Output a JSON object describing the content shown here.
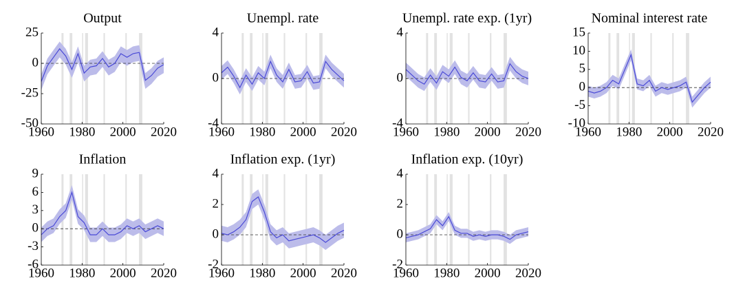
{
  "chart_data": [
    {
      "type": "line",
      "title": "Output",
      "x": [
        1960,
        1963,
        1966,
        1969,
        1972,
        1975,
        1978,
        1981,
        1984,
        1987,
        1990,
        1993,
        1996,
        1999,
        2002,
        2005,
        2008,
        2011,
        2014,
        2017,
        2020
      ],
      "values": [
        -15,
        -2,
        5,
        12,
        6,
        -5,
        8,
        -8,
        -3,
        -2,
        4,
        -3,
        0,
        8,
        5,
        8,
        9,
        -14,
        -10,
        -4,
        -1
      ],
      "band": {
        "lower": [
          -22,
          -9,
          -2,
          5,
          -1,
          -12,
          1,
          -15,
          -10,
          -9,
          -3,
          -10,
          -7,
          1,
          -2,
          1,
          2,
          -21,
          -17,
          -11,
          -8
        ],
        "upper": [
          -9,
          4,
          11,
          18,
          12,
          1,
          14,
          -2,
          3,
          4,
          10,
          3,
          6,
          14,
          11,
          14,
          15,
          -8,
          -4,
          2,
          5
        ]
      },
      "xlim": [
        1960,
        2020
      ],
      "xticks": [
        1960,
        1980,
        2000,
        2020
      ],
      "ylim": [
        -50,
        25
      ],
      "yticks": [
        -50,
        -25,
        0,
        25
      ],
      "reference_line": 0,
      "shading": [
        [
          1969.9,
          1970.9
        ],
        [
          1973.9,
          1975.2
        ],
        [
          1980,
          1980.5
        ],
        [
          1981.5,
          1982.9
        ],
        [
          1990.5,
          1991.2
        ],
        [
          2001.2,
          2001.9
        ],
        [
          2007.9,
          2009.5
        ]
      ],
      "color": "#4a4ad6",
      "band_color": "#bcbcea",
      "shading_color": "#e2e2e2"
    },
    {
      "type": "line",
      "title": "Unempl. rate",
      "x": [
        1960,
        1963,
        1966,
        1969,
        1972,
        1975,
        1978,
        1981,
        1984,
        1987,
        1990,
        1993,
        1996,
        1999,
        2002,
        2005,
        2008,
        2011,
        2014,
        2017,
        2020
      ],
      "values": [
        0.5,
        1.0,
        0.2,
        -0.8,
        0.3,
        -0.5,
        0.5,
        0.0,
        1.5,
        0.3,
        -0.3,
        0.8,
        -0.3,
        -0.2,
        0.6,
        -0.4,
        -0.3,
        1.5,
        0.8,
        0.3,
        -0.2
      ],
      "band": {
        "lower": [
          -0.1,
          0.4,
          -0.4,
          -1.4,
          -0.3,
          -1.1,
          -0.1,
          -0.6,
          0.9,
          -0.3,
          -0.9,
          0.2,
          -0.9,
          -0.8,
          0,
          -1,
          -0.9,
          0.9,
          0.2,
          -0.3,
          -0.8
        ],
        "upper": [
          1.1,
          1.6,
          0.8,
          -0.2,
          0.9,
          0.1,
          1.1,
          0.6,
          2.1,
          0.9,
          0.3,
          1.4,
          0.3,
          0.4,
          1.2,
          0.2,
          0.3,
          2.1,
          1.4,
          0.9,
          0.4
        ]
      },
      "xlim": [
        1960,
        2020
      ],
      "xticks": [
        1960,
        1980,
        2000,
        2020
      ],
      "ylim": [
        -4,
        4
      ],
      "yticks": [
        -4,
        0,
        4
      ],
      "reference_line": 0,
      "shading": [
        [
          1969.9,
          1970.9
        ],
        [
          1973.9,
          1975.2
        ],
        [
          1980,
          1980.5
        ],
        [
          1981.5,
          1982.9
        ],
        [
          1990.5,
          1991.2
        ],
        [
          2001.2,
          2001.9
        ],
        [
          2007.9,
          2009.5
        ]
      ],
      "color": "#4a4ad6",
      "band_color": "#bcbcea",
      "shading_color": "#e2e2e2"
    },
    {
      "type": "line",
      "title": "Unempl. rate exp. (1yr)",
      "x": [
        1960,
        1963,
        1966,
        1969,
        1972,
        1975,
        1978,
        1981,
        1984,
        1987,
        1990,
        1993,
        1996,
        1999,
        2002,
        2005,
        2008,
        2011,
        2014,
        2017,
        2020
      ],
      "values": [
        0.8,
        0.3,
        -0.2,
        -0.5,
        0.3,
        -0.4,
        0.6,
        0.2,
        1.0,
        0.1,
        -0.2,
        0.5,
        -0.2,
        -0.3,
        0.4,
        -0.3,
        -0.2,
        1.3,
        0.6,
        0.2,
        0.0
      ],
      "band": {
        "lower": [
          0.2,
          -0.3,
          -0.8,
          -1.1,
          -0.3,
          -1,
          0,
          -0.4,
          0.4,
          -0.5,
          -0.8,
          -0.1,
          -0.8,
          -0.9,
          -0.2,
          -0.9,
          -0.8,
          0.7,
          0,
          -0.4,
          -0.6
        ],
        "upper": [
          1.4,
          0.9,
          0.4,
          0.1,
          0.9,
          0.2,
          1.2,
          0.8,
          1.6,
          0.7,
          0.4,
          1.1,
          0.4,
          0.3,
          1,
          0.3,
          0.4,
          1.9,
          1.2,
          0.8,
          0.6
        ]
      },
      "xlim": [
        1960,
        2020
      ],
      "xticks": [
        1960,
        1980,
        2000,
        2020
      ],
      "ylim": [
        -4,
        4
      ],
      "yticks": [
        -4,
        0,
        4
      ],
      "reference_line": 0,
      "shading": [
        [
          1969.9,
          1970.9
        ],
        [
          1973.9,
          1975.2
        ],
        [
          1980,
          1980.5
        ],
        [
          1981.5,
          1982.9
        ],
        [
          1990.5,
          1991.2
        ],
        [
          2001.2,
          2001.9
        ],
        [
          2007.9,
          2009.5
        ]
      ],
      "color": "#4a4ad6",
      "band_color": "#bcbcea",
      "shading_color": "#e2e2e2"
    },
    {
      "type": "line",
      "title": "Nominal interest rate",
      "x": [
        1960,
        1963,
        1966,
        1969,
        1972,
        1975,
        1978,
        1981,
        1984,
        1987,
        1990,
        1993,
        1996,
        1999,
        2002,
        2005,
        2008,
        2011,
        2014,
        2017,
        2020
      ],
      "values": [
        -1,
        -1.5,
        -1,
        0,
        2,
        1,
        5,
        9,
        1,
        0.5,
        2,
        -1,
        0,
        -0.5,
        0,
        0.5,
        1.5,
        -4,
        -2,
        0,
        1.5
      ],
      "band": {
        "lower": [
          -2.5,
          -3,
          -2.5,
          -1.5,
          0.5,
          -0.5,
          3.5,
          7.5,
          -0.5,
          -1,
          0.5,
          -2.5,
          -1.5,
          -2,
          -1.5,
          -1,
          0,
          -5.5,
          -3.5,
          -1.5,
          0
        ],
        "upper": [
          0.5,
          0,
          0.5,
          1.5,
          3.5,
          2.5,
          6.5,
          10.5,
          2.5,
          2,
          3.5,
          0.5,
          1.5,
          1,
          1.5,
          2,
          3,
          -2.5,
          -0.5,
          1.5,
          3
        ]
      },
      "xlim": [
        1960,
        2020
      ],
      "xticks": [
        1960,
        1980,
        2000,
        2020
      ],
      "ylim": [
        -10,
        15
      ],
      "yticks": [
        -10,
        -5,
        0,
        5,
        10,
        15
      ],
      "reference_line": 0,
      "shading": [
        [
          1969.9,
          1970.9
        ],
        [
          1973.9,
          1975.2
        ],
        [
          1980,
          1980.5
        ],
        [
          1981.5,
          1982.9
        ],
        [
          1990.5,
          1991.2
        ],
        [
          2001.2,
          2001.9
        ],
        [
          2007.9,
          2009.5
        ]
      ],
      "color": "#4a4ad6",
      "band_color": "#bcbcea",
      "shading_color": "#e2e2e2"
    },
    {
      "type": "line",
      "title": "Inflation",
      "x": [
        1960,
        1963,
        1966,
        1969,
        1972,
        1975,
        1978,
        1981,
        1984,
        1987,
        1990,
        1993,
        1996,
        1999,
        2002,
        2005,
        2008,
        2011,
        2014,
        2017,
        2020
      ],
      "values": [
        -1,
        0,
        0.5,
        2,
        3,
        6,
        2,
        1,
        -1,
        -1,
        0,
        -1,
        -1,
        -0.5,
        0.5,
        0,
        0.5,
        -0.5,
        0,
        0.5,
        0
      ],
      "band": {
        "lower": [
          -2.2,
          -1.2,
          -0.7,
          0.8,
          1.8,
          4.8,
          0.8,
          -0.2,
          -2.2,
          -2.2,
          -1.2,
          -2.2,
          -2.2,
          -1.7,
          -0.7,
          -1.2,
          -0.7,
          -1.7,
          -1.2,
          -0.7,
          -1.2
        ],
        "upper": [
          0.2,
          1.2,
          1.7,
          3.2,
          4.2,
          7.2,
          3.2,
          2.2,
          0.2,
          0.2,
          1.2,
          0.2,
          0.2,
          0.7,
          1.7,
          1.2,
          1.7,
          0.7,
          1.2,
          1.7,
          1.2
        ]
      },
      "xlim": [
        1960,
        2020
      ],
      "xticks": [
        1960,
        1980,
        2000,
        2020
      ],
      "ylim": [
        -6,
        9
      ],
      "yticks": [
        -6,
        -3,
        0,
        3,
        6,
        9
      ],
      "reference_line": 0,
      "shading": [
        [
          1969.9,
          1970.9
        ],
        [
          1973.9,
          1975.2
        ],
        [
          1980,
          1980.5
        ],
        [
          1981.5,
          1982.9
        ],
        [
          1990.5,
          1991.2
        ],
        [
          2001.2,
          2001.9
        ],
        [
          2007.9,
          2009.5
        ]
      ],
      "color": "#4a4ad6",
      "band_color": "#bcbcea",
      "shading_color": "#e2e2e2"
    },
    {
      "type": "line",
      "title": "Inflation exp. (1yr)",
      "x": [
        1960,
        1963,
        1966,
        1969,
        1972,
        1975,
        1978,
        1981,
        1984,
        1987,
        1990,
        1993,
        1996,
        1999,
        2002,
        2005,
        2008,
        2011,
        2014,
        2017,
        2020
      ],
      "values": [
        0.1,
        0,
        0.2,
        0.5,
        1.0,
        2.2,
        2.5,
        1.5,
        0.2,
        -0.2,
        0,
        -0.4,
        -0.3,
        -0.2,
        -0.1,
        0,
        -0.2,
        -0.5,
        -0.2,
        0.1,
        0.3
      ],
      "band": {
        "lower": [
          -0.4,
          -0.5,
          -0.3,
          0,
          0.5,
          1.7,
          2,
          1,
          -0.3,
          -0.7,
          -0.5,
          -0.9,
          -0.8,
          -0.7,
          -0.6,
          -0.5,
          -0.7,
          -1,
          -0.7,
          -0.4,
          -0.2
        ],
        "upper": [
          0.6,
          0.5,
          0.7,
          1,
          1.5,
          2.7,
          3,
          2,
          0.7,
          0.3,
          0.5,
          0.1,
          0.2,
          0.3,
          0.4,
          0.5,
          0.3,
          0,
          0.3,
          0.6,
          0.8
        ]
      },
      "xlim": [
        1960,
        2020
      ],
      "xticks": [
        1960,
        1980,
        2000,
        2020
      ],
      "ylim": [
        -2,
        4
      ],
      "yticks": [
        -2,
        0,
        2,
        4
      ],
      "reference_line": 0,
      "shading": [
        [
          1969.9,
          1970.9
        ],
        [
          1973.9,
          1975.2
        ],
        [
          1980,
          1980.5
        ],
        [
          1981.5,
          1982.9
        ],
        [
          1990.5,
          1991.2
        ],
        [
          2001.2,
          2001.9
        ],
        [
          2007.9,
          2009.5
        ]
      ],
      "color": "#4a4ad6",
      "band_color": "#bcbcea",
      "shading_color": "#e2e2e2"
    },
    {
      "type": "line",
      "title": "Inflation exp. (10yr)",
      "x": [
        1960,
        1963,
        1966,
        1969,
        1972,
        1975,
        1978,
        1981,
        1984,
        1987,
        1990,
        1993,
        1996,
        1999,
        2002,
        2005,
        2008,
        2011,
        2014,
        2017,
        2020
      ],
      "values": [
        -0.2,
        -0.1,
        0,
        0.2,
        0.4,
        1.0,
        0.6,
        1.2,
        0.3,
        0.1,
        0.1,
        -0.1,
        0,
        -0.1,
        0,
        0,
        -0.1,
        -0.3,
        0,
        0.1,
        0.2
      ],
      "band": {
        "lower": [
          -0.5,
          -0.4,
          -0.3,
          -0.1,
          0.1,
          0.7,
          0.3,
          0.9,
          0,
          -0.2,
          -0.2,
          -0.4,
          -0.3,
          -0.4,
          -0.3,
          -0.3,
          -0.4,
          -0.6,
          -0.3,
          -0.2,
          -0.1
        ],
        "upper": [
          0.1,
          0.2,
          0.3,
          0.5,
          0.7,
          1.3,
          0.9,
          1.5,
          0.6,
          0.4,
          0.4,
          0.2,
          0.3,
          0.2,
          0.3,
          0.3,
          0.2,
          0,
          0.3,
          0.4,
          0.5
        ]
      },
      "xlim": [
        1960,
        2020
      ],
      "xticks": [
        1960,
        1980,
        2000,
        2020
      ],
      "ylim": [
        -2,
        4
      ],
      "yticks": [
        -2,
        0,
        2,
        4
      ],
      "reference_line": 0,
      "shading": [
        [
          1969.9,
          1970.9
        ],
        [
          1973.9,
          1975.2
        ],
        [
          1980,
          1980.5
        ],
        [
          1981.5,
          1982.9
        ],
        [
          1990.5,
          1991.2
        ],
        [
          2001.2,
          2001.9
        ],
        [
          2007.9,
          2009.5
        ]
      ],
      "color": "#4a4ad6",
      "band_color": "#bcbcea",
      "shading_color": "#e2e2e2"
    }
  ]
}
